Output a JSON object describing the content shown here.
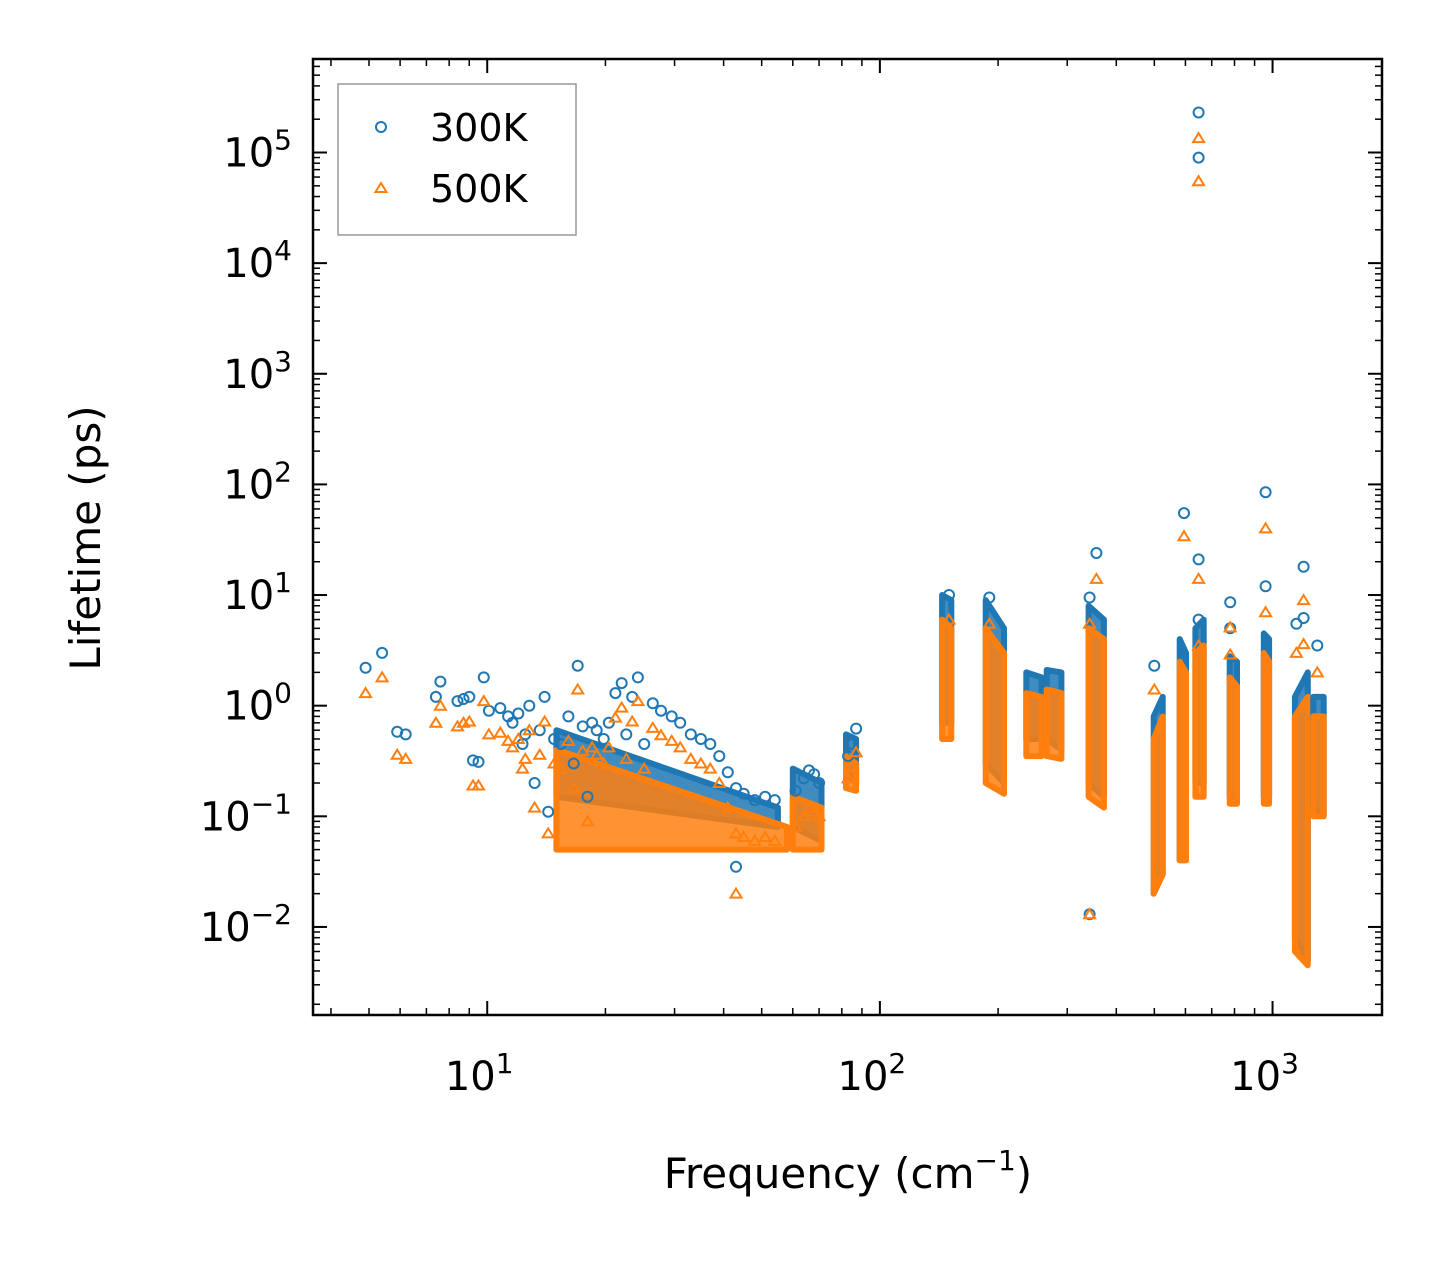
{
  "chart_data": {
    "type": "scatter",
    "title": "",
    "xlabel": "Frequency (cm",
    "xlabel_sup": "−1",
    "xlabel_end": ")",
    "ylabel": "Lifetime (ps)",
    "xscale": "log",
    "yscale": "log",
    "xlim": [
      3.6,
      1900
    ],
    "ylim": [
      0.0016,
      700000
    ],
    "x_ticks": [
      {
        "value": 10,
        "base": "10",
        "exp": "1"
      },
      {
        "value": 100,
        "base": "10",
        "exp": "2"
      },
      {
        "value": 1000,
        "base": "10",
        "exp": "3"
      }
    ],
    "y_ticks": [
      {
        "value": 0.01,
        "base": "10",
        "exp": "−2"
      },
      {
        "value": 0.1,
        "base": "10",
        "exp": "−1"
      },
      {
        "value": 1,
        "base": "10",
        "exp": "0"
      },
      {
        "value": 10,
        "base": "10",
        "exp": "1"
      },
      {
        "value": 100,
        "base": "10",
        "exp": "2"
      },
      {
        "value": 1000,
        "base": "10",
        "exp": "3"
      },
      {
        "value": 10000,
        "base": "10",
        "exp": "4"
      },
      {
        "value": 100000,
        "base": "10",
        "exp": "5"
      }
    ],
    "legend": {
      "position": "top-left",
      "entries": [
        "300K",
        "500K"
      ]
    },
    "series": [
      {
        "name": "300K",
        "marker": "circle",
        "color": "#1f77b4",
        "points": [
          [
            4.9,
            2.2
          ],
          [
            5.4,
            3.0
          ],
          [
            5.9,
            0.58
          ],
          [
            6.2,
            0.55
          ],
          [
            7.4,
            1.2
          ],
          [
            7.6,
            1.65
          ],
          [
            8.4,
            1.1
          ],
          [
            8.7,
            1.15
          ],
          [
            9.0,
            1.2
          ],
          [
            9.2,
            0.32
          ],
          [
            9.5,
            0.31
          ],
          [
            9.8,
            1.8
          ],
          [
            10.1,
            0.9
          ],
          [
            10.8,
            0.95
          ],
          [
            11.3,
            0.8
          ],
          [
            11.6,
            0.7
          ],
          [
            12.0,
            0.85
          ],
          [
            12.3,
            0.45
          ],
          [
            12.5,
            0.55
          ],
          [
            12.8,
            1.0
          ],
          [
            13.2,
            0.2
          ],
          [
            13.6,
            0.6
          ],
          [
            14.0,
            1.2
          ],
          [
            14.3,
            0.11
          ],
          [
            14.8,
            0.5
          ],
          [
            15.4,
            0.45
          ],
          [
            16.1,
            0.8
          ],
          [
            16.6,
            0.3
          ],
          [
            17.0,
            2.3
          ],
          [
            17.5,
            0.65
          ],
          [
            18.0,
            0.15
          ],
          [
            18.5,
            0.7
          ],
          [
            19.0,
            0.6
          ],
          [
            19.8,
            0.5
          ],
          [
            20.4,
            0.7
          ],
          [
            21.2,
            1.3
          ],
          [
            22.0,
            1.6
          ],
          [
            22.6,
            0.55
          ],
          [
            23.4,
            1.2
          ],
          [
            24.2,
            1.8
          ],
          [
            25.1,
            0.45
          ],
          [
            26.4,
            1.05
          ],
          [
            27.7,
            0.9
          ],
          [
            29.5,
            0.8
          ],
          [
            31.0,
            0.7
          ],
          [
            33.0,
            0.55
          ],
          [
            35.0,
            0.5
          ],
          [
            37.0,
            0.45
          ],
          [
            39.0,
            0.35
          ],
          [
            41.0,
            0.25
          ],
          [
            43.0,
            0.18
          ],
          [
            45.0,
            0.16
          ],
          [
            48.0,
            0.14
          ],
          [
            51.0,
            0.15
          ],
          [
            54.0,
            0.14
          ],
          [
            43.0,
            0.035
          ],
          [
            61.0,
            0.17
          ],
          [
            64.0,
            0.22
          ],
          [
            66.0,
            0.26
          ],
          [
            68.0,
            0.24
          ],
          [
            70.0,
            0.2
          ],
          [
            83.0,
            0.35
          ],
          [
            85.0,
            0.45
          ],
          [
            87.0,
            0.62
          ],
          [
            648,
            230000
          ],
          [
            648,
            90000
          ],
          [
            595,
            55
          ],
          [
            960,
            85
          ],
          [
            960,
            12
          ],
          [
            1200,
            18
          ],
          [
            1200,
            6.2
          ],
          [
            1300,
            3.5
          ],
          [
            356,
            24
          ],
          [
            342,
            9.5
          ],
          [
            342,
            0.013
          ],
          [
            190,
            9.5
          ],
          [
            150,
            10
          ],
          [
            500,
            2.3
          ],
          [
            780,
            8.6
          ],
          [
            780,
            5.0
          ],
          [
            648,
            21
          ],
          [
            648,
            6.0
          ],
          [
            1150,
            5.5
          ]
        ]
      },
      {
        "name": "500K",
        "marker": "triangle",
        "color": "#ff7f0e",
        "points": [
          [
            4.9,
            1.3
          ],
          [
            5.4,
            1.8
          ],
          [
            5.9,
            0.36
          ],
          [
            6.2,
            0.33
          ],
          [
            7.4,
            0.7
          ],
          [
            7.6,
            1.0
          ],
          [
            8.4,
            0.65
          ],
          [
            8.7,
            0.7
          ],
          [
            9.0,
            0.72
          ],
          [
            9.2,
            0.19
          ],
          [
            9.5,
            0.19
          ],
          [
            9.8,
            1.1
          ],
          [
            10.1,
            0.55
          ],
          [
            10.8,
            0.57
          ],
          [
            11.3,
            0.48
          ],
          [
            11.6,
            0.42
          ],
          [
            12.0,
            0.5
          ],
          [
            12.3,
            0.27
          ],
          [
            12.5,
            0.33
          ],
          [
            12.8,
            0.6
          ],
          [
            13.2,
            0.12
          ],
          [
            13.6,
            0.36
          ],
          [
            14.0,
            0.72
          ],
          [
            14.3,
            0.07
          ],
          [
            14.8,
            0.3
          ],
          [
            15.4,
            0.27
          ],
          [
            16.1,
            0.48
          ],
          [
            16.6,
            0.18
          ],
          [
            17.0,
            1.4
          ],
          [
            17.5,
            0.39
          ],
          [
            18.0,
            0.09
          ],
          [
            18.5,
            0.42
          ],
          [
            19.0,
            0.36
          ],
          [
            19.8,
            0.3
          ],
          [
            20.4,
            0.42
          ],
          [
            21.2,
            0.78
          ],
          [
            22.0,
            0.96
          ],
          [
            22.6,
            0.33
          ],
          [
            23.4,
            0.72
          ],
          [
            24.2,
            1.1
          ],
          [
            25.1,
            0.27
          ],
          [
            26.4,
            0.63
          ],
          [
            27.7,
            0.54
          ],
          [
            29.5,
            0.48
          ],
          [
            31.0,
            0.42
          ],
          [
            33.0,
            0.33
          ],
          [
            35.0,
            0.3
          ],
          [
            37.0,
            0.27
          ],
          [
            39.0,
            0.2
          ],
          [
            41.0,
            0.12
          ],
          [
            43.0,
            0.07
          ],
          [
            45.0,
            0.065
          ],
          [
            48.0,
            0.06
          ],
          [
            51.0,
            0.065
          ],
          [
            54.0,
            0.06
          ],
          [
            43.0,
            0.02
          ],
          [
            61.0,
            0.08
          ],
          [
            64.0,
            0.1
          ],
          [
            66.0,
            0.12
          ],
          [
            68.0,
            0.11
          ],
          [
            70.0,
            0.1
          ],
          [
            83.0,
            0.22
          ],
          [
            85.0,
            0.28
          ],
          [
            87.0,
            0.38
          ],
          [
            648,
            135000
          ],
          [
            648,
            55000
          ],
          [
            595,
            34
          ],
          [
            960,
            40
          ],
          [
            960,
            7
          ],
          [
            1200,
            9
          ],
          [
            1200,
            3.6
          ],
          [
            1300,
            2.0
          ],
          [
            356,
            14
          ],
          [
            342,
            5.5
          ],
          [
            342,
            0.013
          ],
          [
            190,
            5.5
          ],
          [
            150,
            6
          ],
          [
            500,
            1.4
          ],
          [
            780,
            5.1
          ],
          [
            780,
            2.9
          ],
          [
            648,
            14
          ],
          [
            648,
            3.5
          ],
          [
            1150,
            3.0
          ]
        ]
      }
    ],
    "clusters": [
      {
        "x": [
          15,
          55
        ],
        "y_top": [
          0.6,
          0.12
        ],
        "y_bottom": [
          0.15,
          0.08
        ],
        "series": "300K"
      },
      {
        "x": [
          15,
          58
        ],
        "y_top": [
          0.4,
          0.08
        ],
        "y_bottom": [
          0.05,
          0.05
        ],
        "series": "500K"
      },
      {
        "x": [
          60,
          71
        ],
        "y_top": [
          0.27,
          0.2
        ],
        "y_bottom": [
          0.08,
          0.06
        ],
        "series": "300K"
      },
      {
        "x": [
          60,
          71
        ],
        "y_top": [
          0.15,
          0.12
        ],
        "y_bottom": [
          0.05,
          0.05
        ],
        "series": "500K"
      },
      {
        "x": [
          82,
          87
        ],
        "y_top": [
          0.55,
          0.5
        ],
        "y_bottom": [
          0.25,
          0.2
        ],
        "series": "300K"
      },
      {
        "x": [
          82,
          87
        ],
        "y_top": [
          0.35,
          0.3
        ],
        "y_bottom": [
          0.18,
          0.17
        ],
        "series": "500K"
      },
      {
        "x": [
          144,
          152
        ],
        "y_top": [
          10,
          9
        ],
        "y_bottom": [
          0.7,
          0.7
        ],
        "series": "300K"
      },
      {
        "x": [
          144,
          152
        ],
        "y_top": [
          6,
          5
        ],
        "y_bottom": [
          0.5,
          0.5
        ],
        "series": "500K"
      },
      {
        "x": [
          186,
          207
        ],
        "y_top": [
          9,
          5
        ],
        "y_bottom": [
          0.3,
          0.2
        ],
        "series": "300K"
      },
      {
        "x": [
          186,
          207
        ],
        "y_top": [
          5,
          3
        ],
        "y_bottom": [
          0.2,
          0.16
        ],
        "series": "500K"
      },
      {
        "x": [
          236,
          258
        ],
        "y_top": [
          2,
          1.8
        ],
        "y_bottom": [
          0.5,
          0.5
        ],
        "series": "300K"
      },
      {
        "x": [
          236,
          258
        ],
        "y_top": [
          1.3,
          1.2
        ],
        "y_bottom": [
          0.35,
          0.35
        ],
        "series": "500K"
      },
      {
        "x": [
          266,
          290
        ],
        "y_top": [
          2.1,
          2
        ],
        "y_bottom": [
          0.5,
          0.4
        ],
        "series": "300K"
      },
      {
        "x": [
          266,
          290
        ],
        "y_top": [
          1.4,
          1.3
        ],
        "y_bottom": [
          0.35,
          0.33
        ],
        "series": "500K"
      },
      {
        "x": [
          340,
          372
        ],
        "y_top": [
          8,
          6
        ],
        "y_bottom": [
          0.2,
          0.15
        ],
        "series": "300K"
      },
      {
        "x": [
          340,
          372
        ],
        "y_top": [
          5,
          4
        ],
        "y_bottom": [
          0.15,
          0.12
        ],
        "series": "500K"
      },
      {
        "x": [
          498,
          525
        ],
        "y_top": [
          0.8,
          1.2
        ],
        "y_bottom": [
          0.02,
          0.03
        ],
        "series": "300K"
      },
      {
        "x": [
          498,
          525
        ],
        "y_top": [
          0.5,
          0.8
        ],
        "y_bottom": [
          0.02,
          0.03
        ],
        "series": "500K"
      },
      {
        "x": [
          580,
          602
        ],
        "y_top": [
          4,
          3
        ],
        "y_bottom": [
          0.04,
          0.04
        ],
        "series": "300K"
      },
      {
        "x": [
          580,
          602
        ],
        "y_top": [
          2.5,
          2
        ],
        "y_bottom": [
          0.04,
          0.04
        ],
        "series": "500K"
      },
      {
        "x": [
          636,
          668
        ],
        "y_top": [
          5,
          6
        ],
        "y_bottom": [
          0.2,
          0.2
        ],
        "series": "300K"
      },
      {
        "x": [
          636,
          668
        ],
        "y_top": [
          3,
          3.5
        ],
        "y_bottom": [
          0.15,
          0.15
        ],
        "series": "500K"
      },
      {
        "x": [
          778,
          812
        ],
        "y_top": [
          2.8,
          2.5
        ],
        "y_bottom": [
          0.15,
          0.15
        ],
        "series": "300K"
      },
      {
        "x": [
          778,
          812
        ],
        "y_top": [
          1.8,
          1.5
        ],
        "y_bottom": [
          0.13,
          0.13
        ],
        "series": "500K"
      },
      {
        "x": [
          950,
          980
        ],
        "y_top": [
          4.5,
          4
        ],
        "y_bottom": [
          0.15,
          0.15
        ],
        "series": "300K"
      },
      {
        "x": [
          950,
          980
        ],
        "y_top": [
          3,
          2.5
        ],
        "y_bottom": [
          0.13,
          0.13
        ],
        "series": "500K"
      },
      {
        "x": [
          1140,
          1230
        ],
        "y_top": [
          1.2,
          2
        ],
        "y_bottom": [
          0.008,
          0.005
        ],
        "series": "300K"
      },
      {
        "x": [
          1140,
          1230
        ],
        "y_top": [
          0.8,
          1.2
        ],
        "y_bottom": [
          0.006,
          0.0045
        ],
        "series": "500K"
      },
      {
        "x": [
          1270,
          1350
        ],
        "y_top": [
          1.2,
          1.2
        ],
        "y_bottom": [
          0.12,
          0.1
        ],
        "series": "300K"
      },
      {
        "x": [
          1270,
          1350
        ],
        "y_top": [
          0.8,
          0.8
        ],
        "y_bottom": [
          0.1,
          0.1
        ],
        "series": "500K"
      }
    ]
  }
}
